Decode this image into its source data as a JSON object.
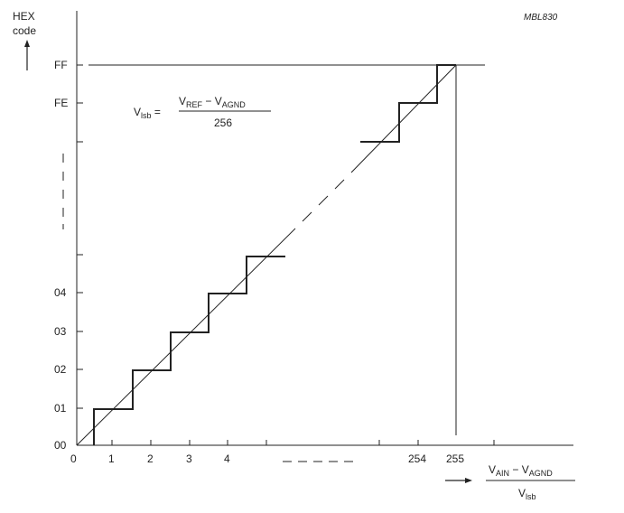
{
  "figure_id": "MBL830",
  "y_axis": {
    "title_line1": "HEX",
    "title_line2": "code",
    "ticks": [
      {
        "label": "FF",
        "value": 255
      },
      {
        "label": "FE",
        "value": 254
      },
      {
        "label": "04",
        "value": 4
      },
      {
        "label": "03",
        "value": 3
      },
      {
        "label": "02",
        "value": 2
      },
      {
        "label": "01",
        "value": 1
      },
      {
        "label": "00",
        "value": 0
      }
    ]
  },
  "x_axis": {
    "ticks": [
      {
        "label": "0",
        "value": 0
      },
      {
        "label": "1",
        "value": 1
      },
      {
        "label": "2",
        "value": 2
      },
      {
        "label": "3",
        "value": 3
      },
      {
        "label": "4",
        "value": 4
      },
      {
        "label": "254",
        "value": 254
      },
      {
        "label": "255",
        "value": 255
      }
    ],
    "label": {
      "num_v": "V",
      "num_sub1": "AIN",
      "num_minus": " − ",
      "num_v2": "V",
      "num_sub2": "AGND",
      "den_v": "V",
      "den_sub": "lsb"
    }
  },
  "formula": {
    "lhs_v": "V",
    "lhs_sub": "lsb",
    "equals": " =",
    "num_v": "V",
    "num_sub1": "REF",
    "num_minus": " − ",
    "num_v2": "V",
    "num_sub2": "AGND",
    "den": "256"
  },
  "series": {
    "ideal_line": "straight transfer line from origin through (255, 255)",
    "staircase": "quantization staircase, code n for input (n-0.5, n+0.5)"
  }
}
